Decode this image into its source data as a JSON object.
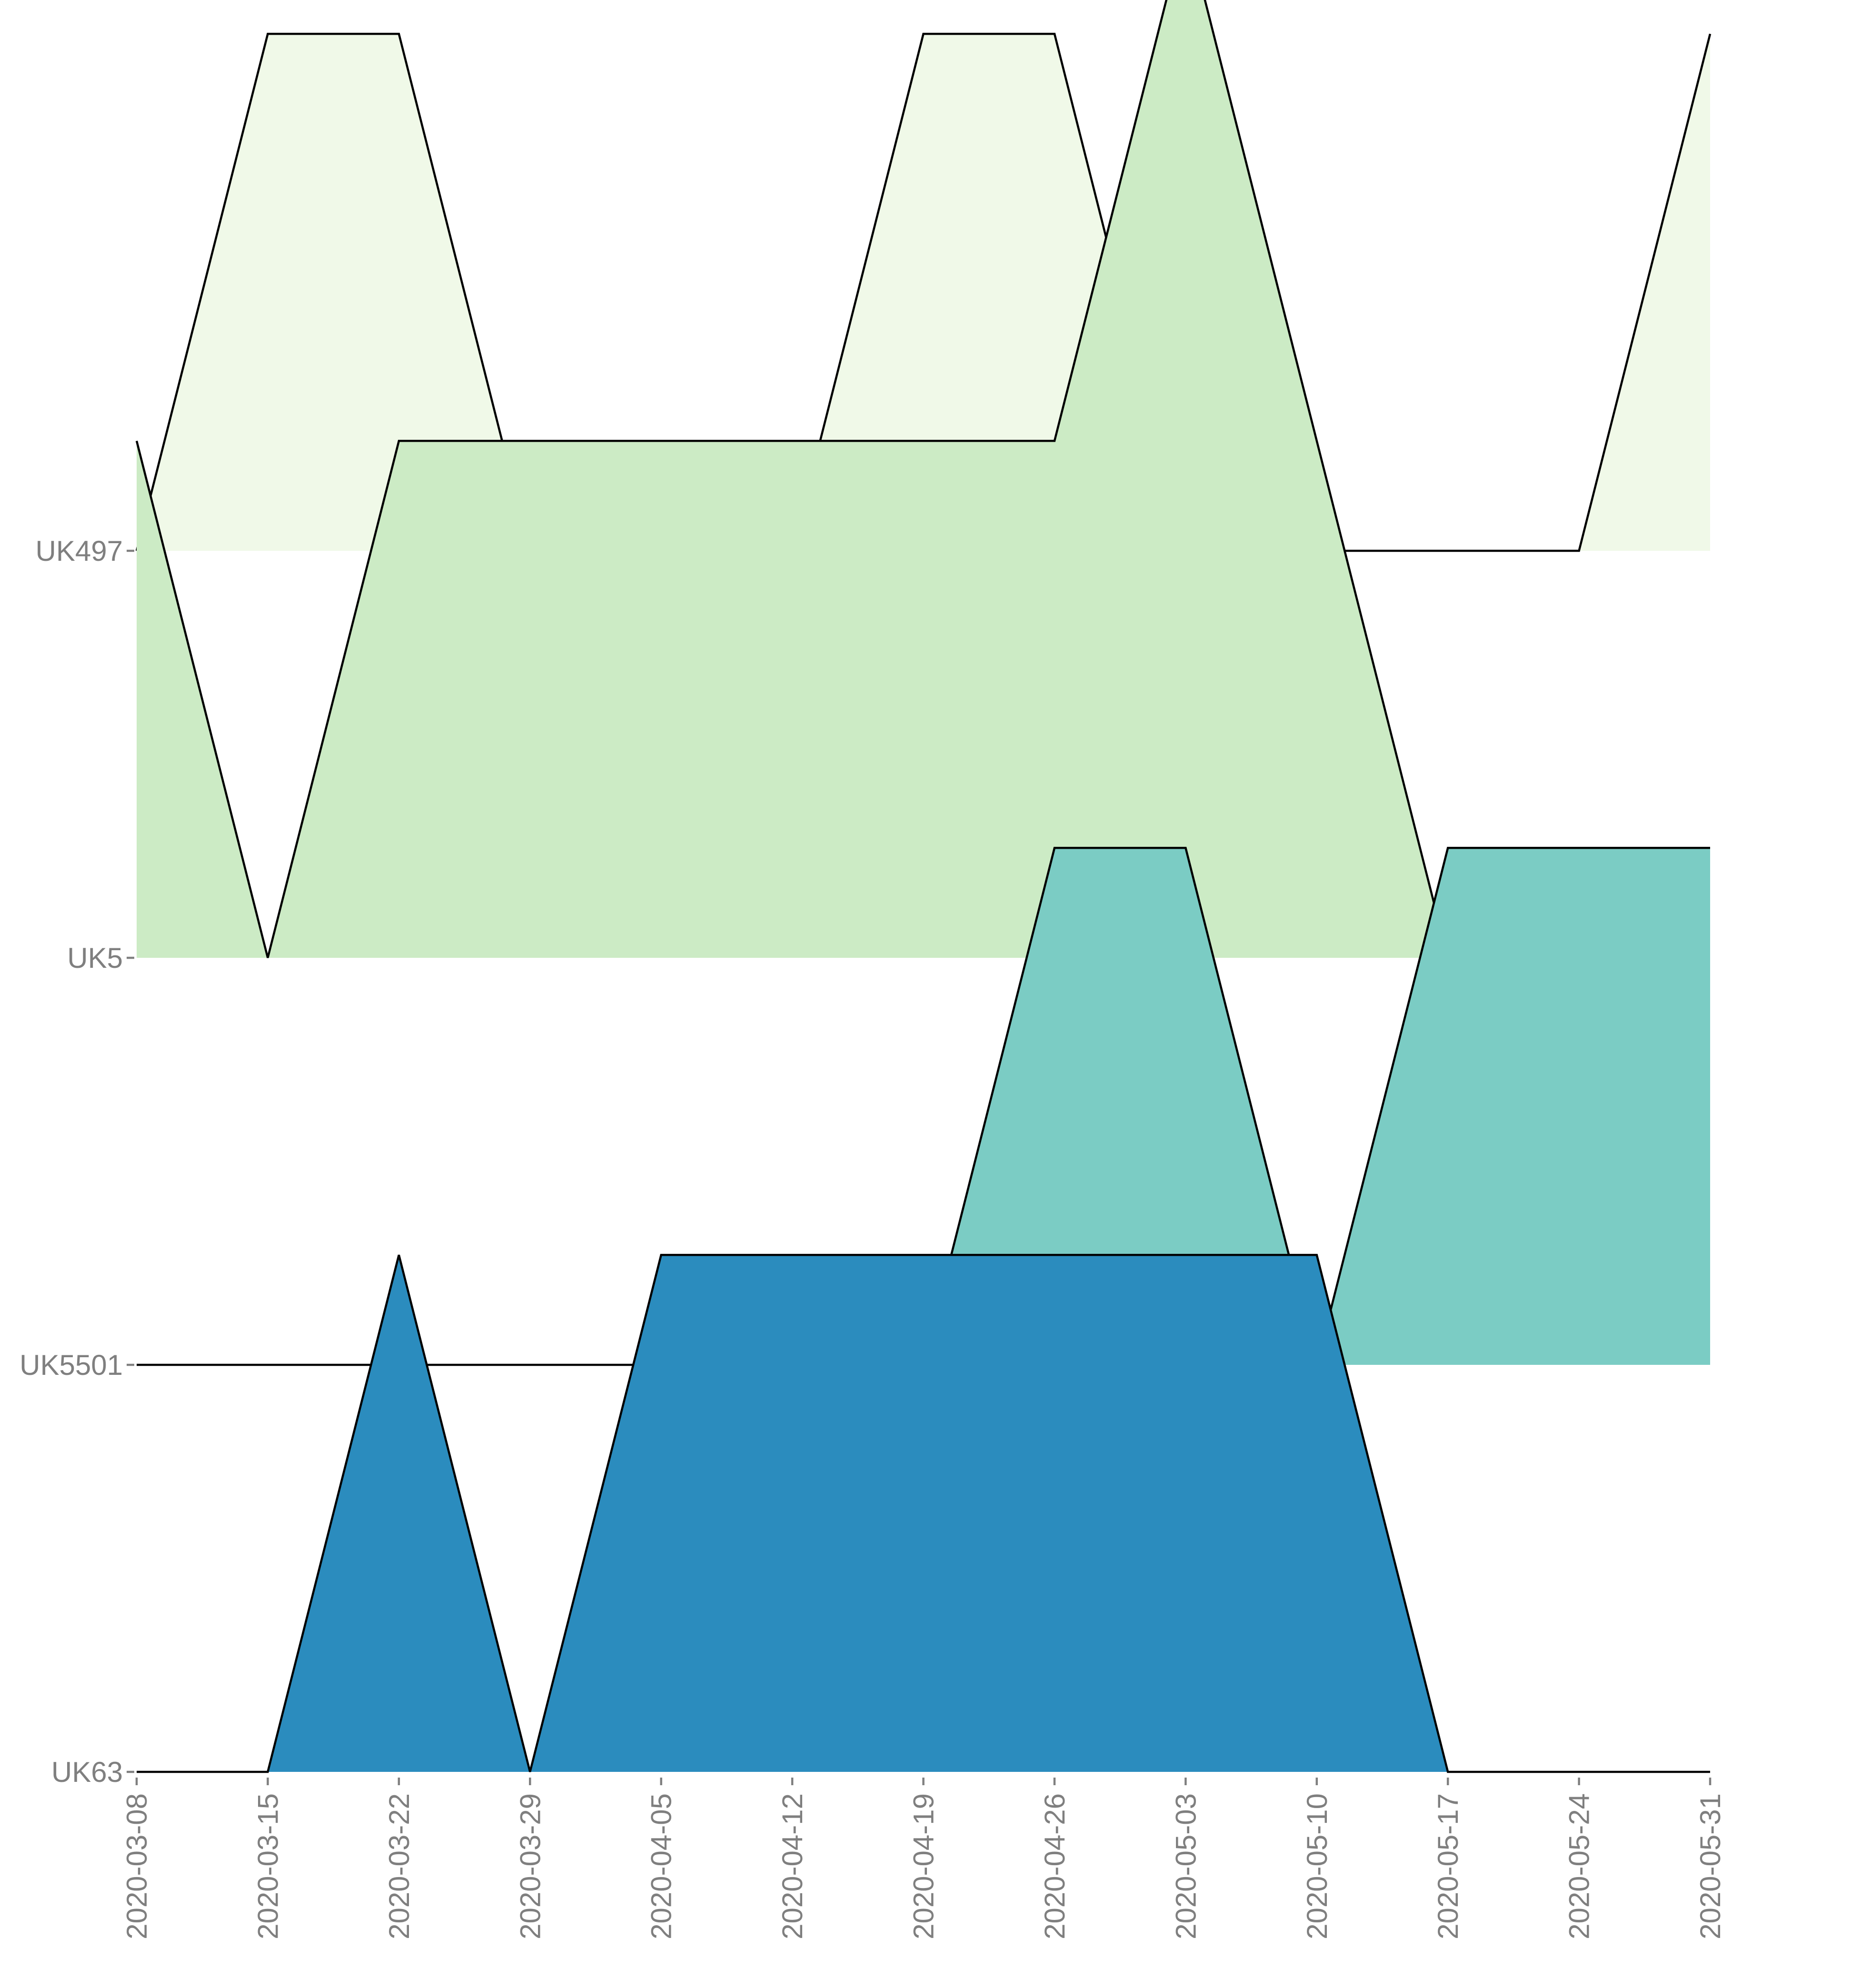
{
  "chart_data": {
    "type": "area",
    "title": "",
    "xlabel": "",
    "ylabel": "",
    "x": [
      "2020-03-08",
      "2020-03-15",
      "2020-03-22",
      "2020-03-29",
      "2020-04-05",
      "2020-04-12",
      "2020-04-19",
      "2020-04-26",
      "2020-05-03",
      "2020-05-10",
      "2020-05-17",
      "2020-05-24",
      "2020-05-31"
    ],
    "grid": false,
    "legend": "none",
    "ridge_scale": 1.27,
    "series": [
      {
        "name": "UK63",
        "color": "#2b8cbe",
        "values": [
          0,
          0,
          1,
          0,
          1,
          1,
          1,
          1,
          1,
          1,
          0,
          0,
          0
        ]
      },
      {
        "name": "UK5501",
        "color": "#7bccc4",
        "values": [
          0,
          0,
          0,
          0,
          0,
          0,
          0,
          1,
          1,
          0,
          1,
          1,
          1
        ]
      },
      {
        "name": "UK5",
        "color": "#ccebc5",
        "values": [
          1,
          0,
          1,
          1,
          1,
          1,
          1,
          1,
          2,
          1,
          0,
          0,
          0
        ]
      },
      {
        "name": "UK497",
        "color": "#f0f9e8",
        "values": [
          0,
          1,
          1,
          0,
          0,
          0,
          1,
          1,
          0,
          0,
          0,
          0,
          1
        ]
      }
    ]
  }
}
